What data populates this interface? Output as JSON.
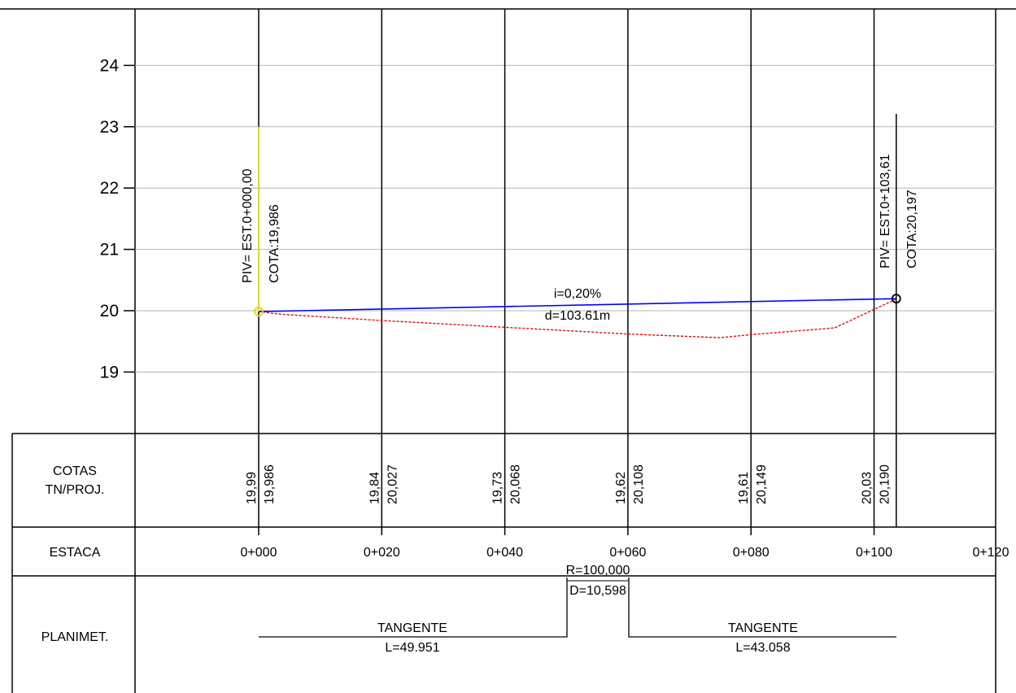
{
  "chart_data": {
    "type": "line",
    "x_unit": "m",
    "y_ticks": [
      19,
      20,
      21,
      22,
      23,
      24
    ],
    "ylim": [
      18.3,
      24.8
    ],
    "xlim": [
      -20,
      120
    ],
    "grid": true,
    "series": [
      {
        "role": "terrain",
        "color": "#ff0000",
        "style": "dashed",
        "x": [
          0,
          2,
          4,
          20,
          40,
          60,
          75,
          80,
          93.6,
          103.61
        ],
        "y": [
          19.99,
          19.96,
          19.94,
          19.84,
          19.73,
          19.62,
          19.56,
          19.61,
          19.72,
          20.19
        ]
      },
      {
        "role": "project-grade",
        "color": "#0000ff",
        "style": "solid",
        "x": [
          0,
          103.61
        ],
        "y": [
          19.986,
          20.197
        ]
      }
    ],
    "grade_label": "i=0,20%",
    "distance_label": "d=103.61m",
    "piv_points": [
      {
        "x": 0,
        "y": 19.986,
        "piv_label": "PIV= EST.0+000,00",
        "cota_label": "COTA:19,986",
        "color": "#e6d600"
      },
      {
        "x": 103.61,
        "y": 20.197,
        "piv_label": "PIV= EST.0+103,61",
        "cota_label": "COTA:20,197",
        "color": "#000000"
      }
    ]
  },
  "table": {
    "rows": {
      "cotas_label_line1": "COTAS",
      "cotas_label_line2": "TN/PROJ.",
      "estaca_label": "ESTACA",
      "planimet_label": "PLANIMET."
    },
    "stations": [
      {
        "x": 0,
        "estaca": "0+000",
        "tn": "19,99",
        "proj": "19,986"
      },
      {
        "x": 20,
        "estaca": "0+020",
        "tn": "19,84",
        "proj": "20,027"
      },
      {
        "x": 40,
        "estaca": "0+040",
        "tn": "19,73",
        "proj": "20,068"
      },
      {
        "x": 60,
        "estaca": "0+060",
        "tn": "19,62",
        "proj": "20,108"
      },
      {
        "x": 80,
        "estaca": "0+080",
        "tn": "19,61",
        "proj": "20,149"
      },
      {
        "x": 100,
        "estaca": "0+100",
        "tn": "20,03",
        "proj": "20,190"
      },
      {
        "x": 120,
        "estaca": "0+120",
        "tn": "",
        "proj": ""
      }
    ],
    "planimetry": {
      "tangent1_label": "TANGENTE",
      "tangent1_length": "L=49.951",
      "curve_radius": "R=100,000",
      "curve_development": "D=10,598",
      "tangent2_label": "TANGENTE",
      "tangent2_length": "L=43.058"
    }
  }
}
